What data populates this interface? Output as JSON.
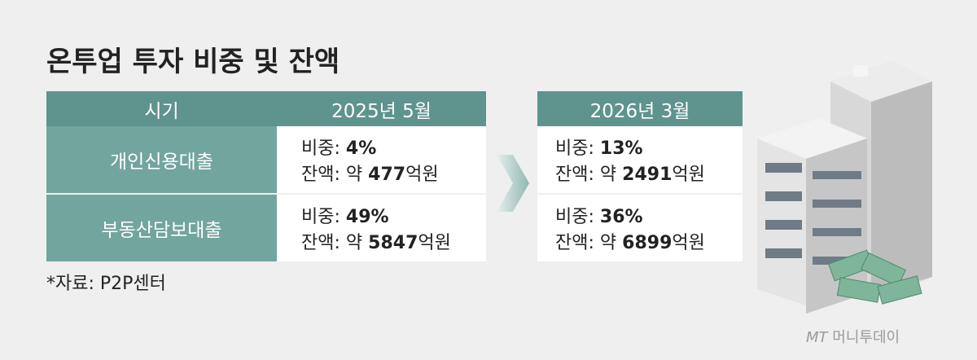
{
  "header": {
    "title": "온투업 투자 비중 및 잔액"
  },
  "table": {
    "columns": [
      "시기",
      "2025년 5월",
      "2026년 3월"
    ],
    "rows": [
      {
        "label": "개인신용대출",
        "cells": [
          [
            {
              "label": "비중:",
              "value": "4%"
            },
            {
              "label": "잔액: 약",
              "value": "477",
              "unit": "억원"
            }
          ],
          [
            {
              "label": "비중:",
              "value": "13%"
            },
            {
              "label": "잔액: 약",
              "value": "2491",
              "unit": "억원"
            }
          ]
        ]
      },
      {
        "label": "부동산담보대출",
        "cells": [
          [
            {
              "label": "비중:",
              "value": "49%"
            },
            {
              "label": "잔액: 약",
              "value": "5847",
              "unit": "억원"
            }
          ],
          [
            {
              "label": "비중:",
              "value": "36%"
            },
            {
              "label": "잔액: 약",
              "value": "6899",
              "unit": "억원"
            }
          ]
        ]
      }
    ]
  },
  "source": "*자료: P2P센터",
  "logo": {
    "mark": "MT",
    "name": "머니투데이"
  }
}
